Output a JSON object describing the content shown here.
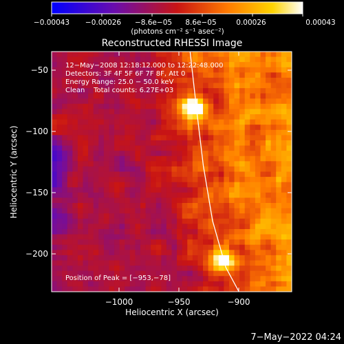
{
  "chart_data": {
    "type": "heatmap",
    "title": "Reconstructed RHESSI Image",
    "xlabel": "Heliocentric X (arcsec)",
    "ylabel": "Heliocentric Y (arcsec)",
    "xlim": [
      -1060,
      -878
    ],
    "ylim": [
      -228,
      -32
    ],
    "x_ticks": [
      -1000,
      -950,
      -900
    ],
    "x_tick_labels": [
      "−1000",
      "−950",
      "−900"
    ],
    "y_ticks": [
      -50,
      -100,
      -150,
      -200
    ],
    "y_tick_labels": [
      "−50",
      "−100",
      "−150",
      "−200"
    ],
    "colorbar": {
      "min": -0.00043,
      "max": 0.00043,
      "ticks": [
        -0.00043,
        -0.00026,
        -8.6e-05,
        8.6e-05,
        0.00026,
        0.00043
      ],
      "tick_labels": [
        "−0.00043",
        "−0.00026",
        "−8.6e−05",
        "8.6e−05",
        "0.00026",
        "0.00043"
      ],
      "unit_label": "(photons cm⁻² s⁻¹ asec⁻²)",
      "colors": [
        "#0000ff",
        "#6a0dad",
        "#c81414",
        "#ff7a00",
        "#ffd400",
        "#ffffff"
      ]
    },
    "annotations": [
      "12−May−2008 12:18:12.000 to 12:22:48.000",
      "Detectors: 3F 4F 5F 6F 7F 8F, Att 0",
      "Energy Range: 25.0 − 50.0 keV",
      "Clean    Total counts: 6.27E+03",
      "Position of Peak = [−953,−78]"
    ],
    "peaks": [
      {
        "x": -953,
        "y": -78,
        "level": 0.00043
      },
      {
        "x": -930,
        "y": -203,
        "level": 0.00038
      }
    ],
    "limb": [
      [
        -955,
        -32
      ],
      [
        -950,
        -80
      ],
      [
        -945,
        -125
      ],
      [
        -938,
        -170
      ],
      [
        -928,
        -208
      ],
      [
        -918,
        -228
      ]
    ]
  },
  "footer": {
    "timestamp": "7−May−2022 04:24"
  }
}
